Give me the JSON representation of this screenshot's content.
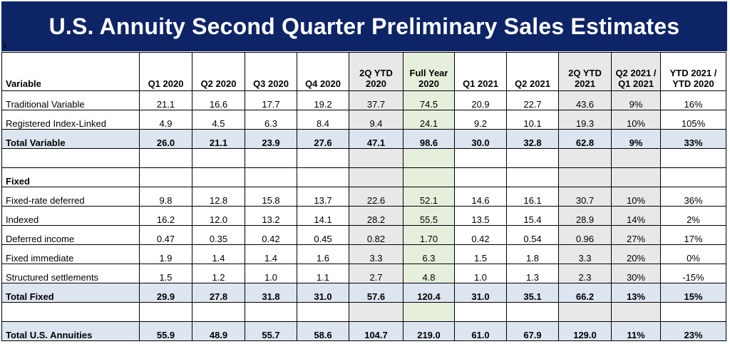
{
  "title": "U.S. Annuity Second Quarter Preliminary Sales Estimates",
  "unit_label": "$",
  "columns": [
    "Variable",
    "Q1 2020",
    "Q2 2020",
    "Q3 2020",
    "Q4 2020",
    "2Q YTD 2020",
    "Full Year 2020",
    "Q1 2021",
    "Q2 2021",
    "2Q YTD 2021",
    "Q2 2021 / Q1 2021",
    "YTD 2021 / YTD 2020"
  ],
  "rows": {
    "traditional_variable": [
      "Traditional Variable",
      "21.1",
      "16.6",
      "17.7",
      "19.2",
      "37.7",
      "74.5",
      "20.9",
      "22.7",
      "43.6",
      "9%",
      "16%"
    ],
    "registered_index_linked": [
      "Registered Index-Linked",
      "4.9",
      "4.5",
      "6.3",
      "8.4",
      "9.4",
      "24.1",
      "9.2",
      "10.1",
      "19.3",
      "10%",
      "105%"
    ],
    "total_variable": [
      "Total Variable",
      "26.0",
      "21.1",
      "23.9",
      "27.6",
      "47.1",
      "98.6",
      "30.0",
      "32.8",
      "62.8",
      "9%",
      "33%"
    ],
    "fixed_header": "Fixed",
    "fixed_rate_deferred": [
      "Fixed-rate deferred",
      "9.8",
      "12.8",
      "15.8",
      "13.7",
      "22.6",
      "52.1",
      "14.6",
      "16.1",
      "30.7",
      "10%",
      "36%"
    ],
    "indexed": [
      "Indexed",
      "16.2",
      "12.0",
      "13.2",
      "14.1",
      "28.2",
      "55.5",
      "13.5",
      "15.4",
      "28.9",
      "14%",
      "2%"
    ],
    "deferred_income": [
      "Deferred income",
      "0.47",
      "0.35",
      "0.42",
      "0.45",
      "0.82",
      "1.70",
      "0.42",
      "0.54",
      "0.96",
      "27%",
      "17%"
    ],
    "fixed_immediate": [
      "Fixed immediate",
      "1.9",
      "1.4",
      "1.4",
      "1.6",
      "3.3",
      "6.3",
      "1.5",
      "1.8",
      "3.3",
      "20%",
      "0%"
    ],
    "structured_settlements": [
      "Structured settlements",
      "1.5",
      "1.2",
      "1.0",
      "1.1",
      "2.7",
      "4.8",
      "1.0",
      "1.3",
      "2.3",
      "30%",
      "-15%"
    ],
    "total_fixed": [
      "Total Fixed",
      "29.9",
      "27.8",
      "31.8",
      "31.0",
      "57.6",
      "120.4",
      "31.0",
      "35.1",
      "66.2",
      "13%",
      "15%"
    ],
    "total_us_annuities": [
      "Total U.S. Annuities",
      "55.9",
      "48.9",
      "55.7",
      "58.6",
      "104.7",
      "219.0",
      "61.0",
      "67.9",
      "129.0",
      "11%",
      "23%"
    ]
  }
}
